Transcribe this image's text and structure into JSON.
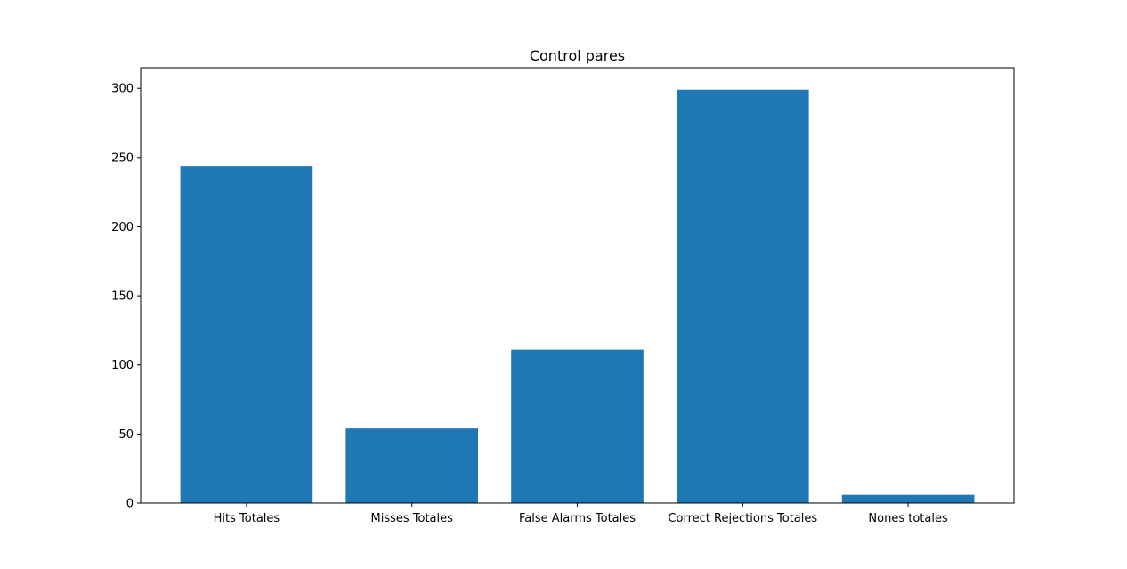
{
  "chart_data": {
    "type": "bar",
    "title": "Control pares",
    "xlabel": "",
    "ylabel": "",
    "categories": [
      "Hits Totales",
      "Misses Totales",
      "False Alarms Totales",
      "Correct Rejections Totales",
      "Nones totales"
    ],
    "values": [
      244,
      54,
      111,
      299,
      6
    ],
    "ylim": [
      0,
      314.95
    ],
    "yticks": [
      0,
      50,
      100,
      150,
      200,
      250,
      300
    ],
    "grid": false,
    "bar_color": "#1f77b4"
  }
}
